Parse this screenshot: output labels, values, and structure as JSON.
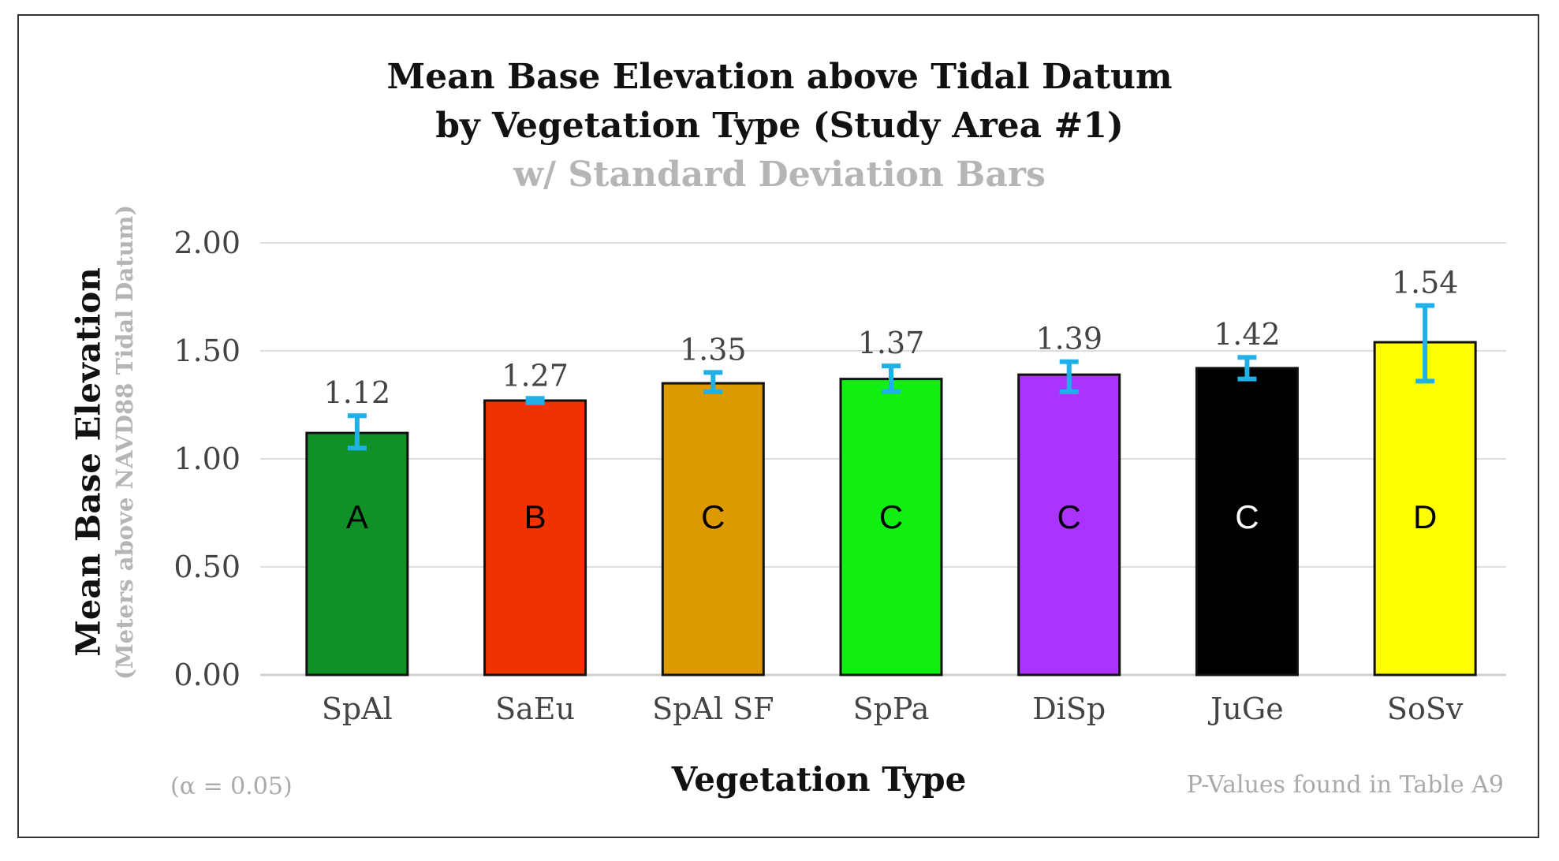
{
  "chart_data": {
    "type": "bar",
    "title": "Mean Base Elevation above Tidal Datum",
    "title_line2": "by Vegetation Type (Study Area #1)",
    "subtitle": "w/ Standard Deviation Bars",
    "xlabel": "Vegetation Type",
    "ylabel": "Mean Base Elevation",
    "ylabel_sub": "(Meters above NAVD88 Tidal Datum)",
    "ylim": [
      0,
      2
    ],
    "yticks": [
      "0.00",
      "0.50",
      "1.00",
      "1.50",
      "2.00"
    ],
    "ytick_values": [
      0,
      0.5,
      1.0,
      1.5,
      2.0
    ],
    "categories": [
      "SpAl",
      "SaEu",
      "SpAl SF",
      "SpPa",
      "DiSp",
      "JuGe",
      "SoSv"
    ],
    "values": [
      1.12,
      1.27,
      1.35,
      1.37,
      1.39,
      1.42,
      1.54
    ],
    "value_labels": [
      "1.12",
      "1.27",
      "1.35",
      "1.37",
      "1.39",
      "1.42",
      "1.54"
    ],
    "error_low": [
      1.05,
      1.26,
      1.31,
      1.31,
      1.31,
      1.37,
      1.36
    ],
    "error_high": [
      1.2,
      1.28,
      1.4,
      1.43,
      1.45,
      1.47,
      1.71
    ],
    "group_letters": [
      "A",
      "B",
      "C",
      "C",
      "C",
      "C",
      "D"
    ],
    "colors": [
      "#0f9128",
      "#ee3300",
      "#dd9900",
      "#11ee11",
      "#aa33ff",
      "#000000",
      "#ffff00"
    ],
    "letter_colors": [
      "#000000",
      "#000000",
      "#000000",
      "#000000",
      "#000000",
      "#ffffff",
      "#000000"
    ],
    "error_bar_color": "#1fb0e8",
    "grid": true,
    "alpha_note": "(α = 0.05)",
    "pvalue_note": "P-Values found in Table A9"
  }
}
